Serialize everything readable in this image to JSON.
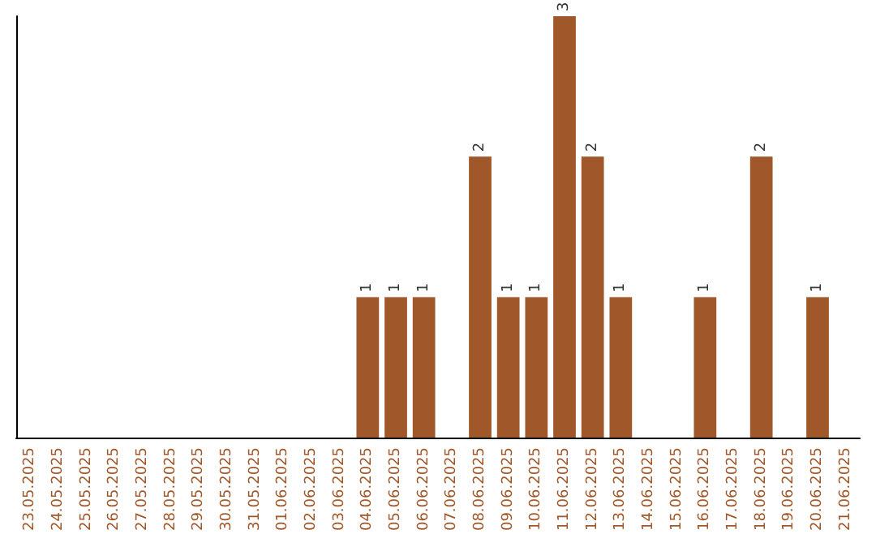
{
  "chart_data": {
    "type": "bar",
    "categories": [
      "23.05.2025",
      "24.05.2025",
      "25.05.2025",
      "26.05.2025",
      "27.05.2025",
      "28.05.2025",
      "29.05.2025",
      "30.05.2025",
      "31.05.2025",
      "01.06.2025",
      "02.06.2025",
      "03.06.2025",
      "04.06.2025",
      "05.06.2025",
      "06.06.2025",
      "07.06.2025",
      "08.06.2025",
      "09.06.2025",
      "10.06.2025",
      "11.06.2025",
      "12.06.2025",
      "13.06.2025",
      "14.06.2025",
      "15.06.2025",
      "16.06.2025",
      "17.06.2025",
      "18.06.2025",
      "19.06.2025",
      "20.06.2025",
      "21.06.2025"
    ],
    "values": [
      null,
      null,
      null,
      null,
      null,
      null,
      null,
      null,
      null,
      null,
      null,
      null,
      1,
      1,
      1,
      null,
      2,
      1,
      1,
      3,
      2,
      1,
      null,
      null,
      1,
      null,
      2,
      null,
      1,
      null
    ],
    "data_labels": true,
    "color": "#a0572a",
    "tick_labels": "x"
  }
}
